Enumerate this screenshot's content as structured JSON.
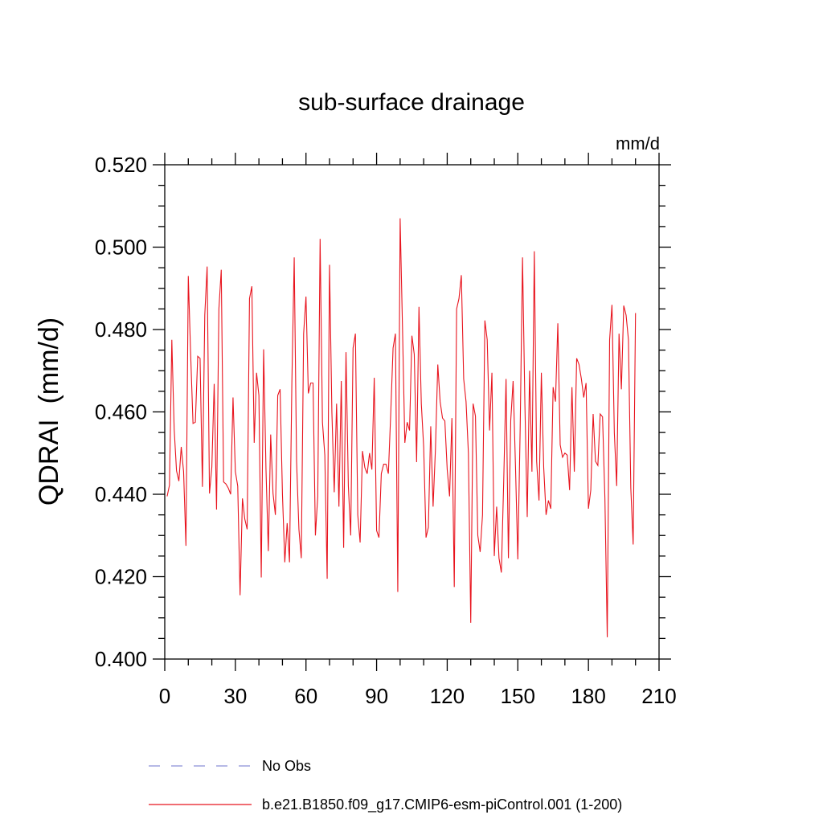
{
  "chart_data": {
    "type": "line",
    "title": "sub-surface drainage",
    "units_label": "mm/d",
    "ylabel": "QDRAI  (mm/d)",
    "xlabel": "",
    "xlim": [
      0,
      210
    ],
    "ylim": [
      0.4,
      0.52
    ],
    "x_ticks": [
      0,
      30,
      60,
      90,
      120,
      150,
      180,
      210
    ],
    "x_tick_labels": [
      "0",
      "30",
      "60",
      "90",
      "120",
      "150",
      "180",
      "210"
    ],
    "y_ticks": [
      0.4,
      0.42,
      0.44,
      0.46,
      0.48,
      0.5,
      0.52
    ],
    "y_tick_labels": [
      "0.400",
      "0.420",
      "0.440",
      "0.460",
      "0.480",
      "0.500",
      "0.520"
    ],
    "grid": false,
    "legend_position": "bottom",
    "series": [
      {
        "name": "No Obs",
        "color": "#8b8fd8",
        "style": "dashed",
        "x": [],
        "y": []
      },
      {
        "name": "b.e21.B1850.f09_g17.CMIP6-esm-piControl.001 (1-200)",
        "color": "#e8141e",
        "style": "solid",
        "x": [
          1,
          2,
          3,
          4,
          5,
          6,
          7,
          8,
          9,
          10,
          11,
          12,
          13,
          14,
          15,
          16,
          17,
          18,
          19,
          20,
          21,
          22,
          23,
          24,
          25,
          26,
          27,
          28,
          29,
          30,
          31,
          32,
          33,
          34,
          35,
          36,
          37,
          38,
          39,
          40,
          41,
          42,
          43,
          44,
          45,
          46,
          47,
          48,
          49,
          50,
          51,
          52,
          53,
          54,
          55,
          56,
          57,
          58,
          59,
          60,
          61,
          62,
          63,
          64,
          65,
          66,
          67,
          68,
          69,
          70,
          71,
          72,
          73,
          74,
          75,
          76,
          77,
          78,
          79,
          80,
          81,
          82,
          83,
          84,
          85,
          86,
          87,
          88,
          89,
          90,
          91,
          92,
          93,
          94,
          95,
          96,
          97,
          98,
          99,
          100,
          101,
          102,
          103,
          104,
          105,
          106,
          107,
          108,
          109,
          110,
          111,
          112,
          113,
          114,
          115,
          116,
          117,
          118,
          119,
          120,
          121,
          122,
          123,
          124,
          125,
          126,
          127,
          128,
          129,
          130,
          131,
          132,
          133,
          134,
          135,
          136,
          137,
          138,
          139,
          140,
          141,
          142,
          143,
          144,
          145,
          146,
          147,
          148,
          149,
          150,
          151,
          152,
          153,
          154,
          155,
          156,
          157,
          158,
          159,
          160,
          161,
          162,
          163,
          164,
          165,
          166,
          167,
          168,
          169,
          170,
          171,
          172,
          173,
          174,
          175,
          176,
          177,
          178,
          179,
          180,
          181,
          182,
          183,
          184,
          185,
          186,
          187,
          188,
          189,
          190,
          191,
          192,
          193,
          194,
          195,
          196,
          197,
          198,
          199,
          200
        ],
        "y": [
          0.4395,
          0.4422,
          0.4775,
          0.4558,
          0.4457,
          0.4432,
          0.4515,
          0.4455,
          0.4275,
          0.493,
          0.474,
          0.4572,
          0.4575,
          0.4735,
          0.473,
          0.4418,
          0.4835,
          0.4953,
          0.4402,
          0.4466,
          0.4668,
          0.4363,
          0.485,
          0.4945,
          0.443,
          0.4425,
          0.4415,
          0.44,
          0.4635,
          0.4455,
          0.442,
          0.4155,
          0.439,
          0.434,
          0.4315,
          0.4875,
          0.4905,
          0.4525,
          0.4695,
          0.464,
          0.4198,
          0.4752,
          0.4462,
          0.4262,
          0.4545,
          0.4402,
          0.435,
          0.464,
          0.4655,
          0.44,
          0.4235,
          0.433,
          0.4235,
          0.467,
          0.4975,
          0.448,
          0.4315,
          0.4245,
          0.479,
          0.488,
          0.4645,
          0.467,
          0.467,
          0.43,
          0.4395,
          0.502,
          0.4575,
          0.4495,
          0.4195,
          0.4957,
          0.46,
          0.4405,
          0.462,
          0.437,
          0.4675,
          0.427,
          0.4745,
          0.442,
          0.43,
          0.4755,
          0.479,
          0.435,
          0.4283,
          0.4505,
          0.4465,
          0.445,
          0.45,
          0.446,
          0.4683,
          0.4312,
          0.4295,
          0.445,
          0.4473,
          0.4473,
          0.445,
          0.4595,
          0.4755,
          0.479,
          0.4163,
          0.507,
          0.4805,
          0.4525,
          0.4575,
          0.4555,
          0.4785,
          0.474,
          0.4478,
          0.4855,
          0.462,
          0.4515,
          0.4295,
          0.432,
          0.4565,
          0.437,
          0.451,
          0.4715,
          0.4625,
          0.4585,
          0.4578,
          0.446,
          0.4395,
          0.4585,
          0.4175,
          0.485,
          0.4875,
          0.4932,
          0.468,
          0.4625,
          0.45,
          0.4088,
          0.462,
          0.459,
          0.43,
          0.426,
          0.435,
          0.4822,
          0.4775,
          0.4555,
          0.4695,
          0.425,
          0.437,
          0.4245,
          0.421,
          0.443,
          0.468,
          0.4245,
          0.458,
          0.4675,
          0.447,
          0.4242,
          0.456,
          0.4975,
          0.462,
          0.4345,
          0.47,
          0.4455,
          0.499,
          0.448,
          0.4385,
          0.4695,
          0.4465,
          0.435,
          0.4385,
          0.4365,
          0.466,
          0.4625,
          0.4815,
          0.452,
          0.449,
          0.45,
          0.4495,
          0.441,
          0.466,
          0.4455,
          0.473,
          0.4715,
          0.468,
          0.4635,
          0.467,
          0.4365,
          0.441,
          0.4595,
          0.448,
          0.447,
          0.4595,
          0.4588,
          0.439,
          0.4053,
          0.4775,
          0.486,
          0.455,
          0.442,
          0.479,
          0.4655,
          0.4858,
          0.4835,
          0.4775,
          0.4415,
          0.4278,
          0.484
        ]
      }
    ]
  }
}
